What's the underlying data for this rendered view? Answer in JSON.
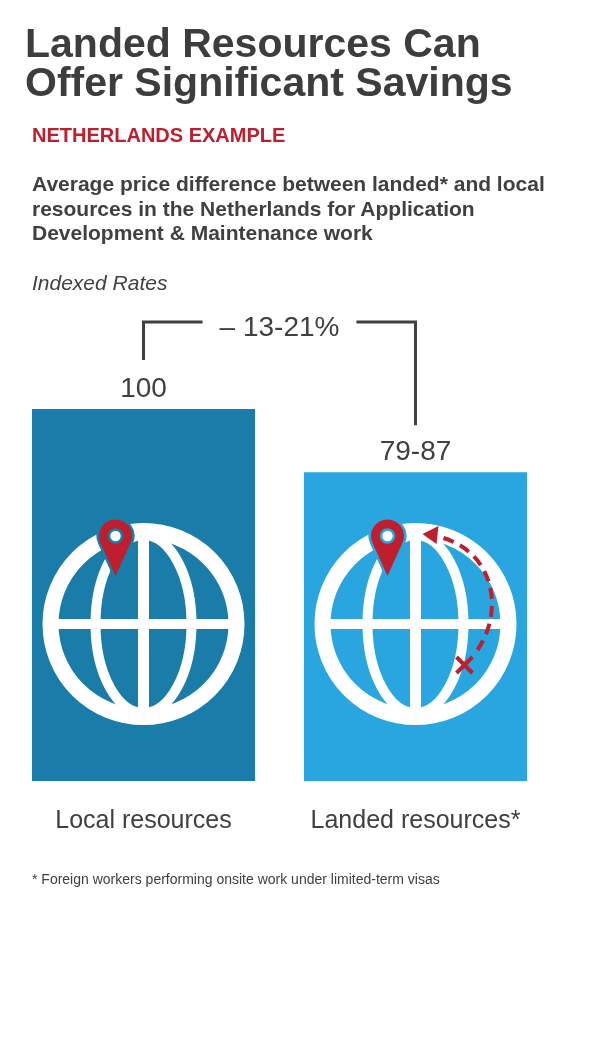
{
  "chart_data": {
    "type": "bar",
    "title": "Landed Resources Can Offer Significant Savings",
    "subtitle": "NETHERLANDS EXAMPLE",
    "annotations": [
      "Average price difference between landed* and local resources in the Netherlands for Application Development & Maintenance work",
      "Indexed Rates",
      "– 13-21%",
      "* Foreign workers performing onsite work under limited-term visas"
    ],
    "categories": [
      "Local resources",
      "Landed resources*"
    ],
    "values": [
      100,
      83
    ],
    "colors": [
      "#1a7ca8",
      "#29a6e0"
    ],
    "value_labels": [
      "100",
      "79-87"
    ]
  }
}
